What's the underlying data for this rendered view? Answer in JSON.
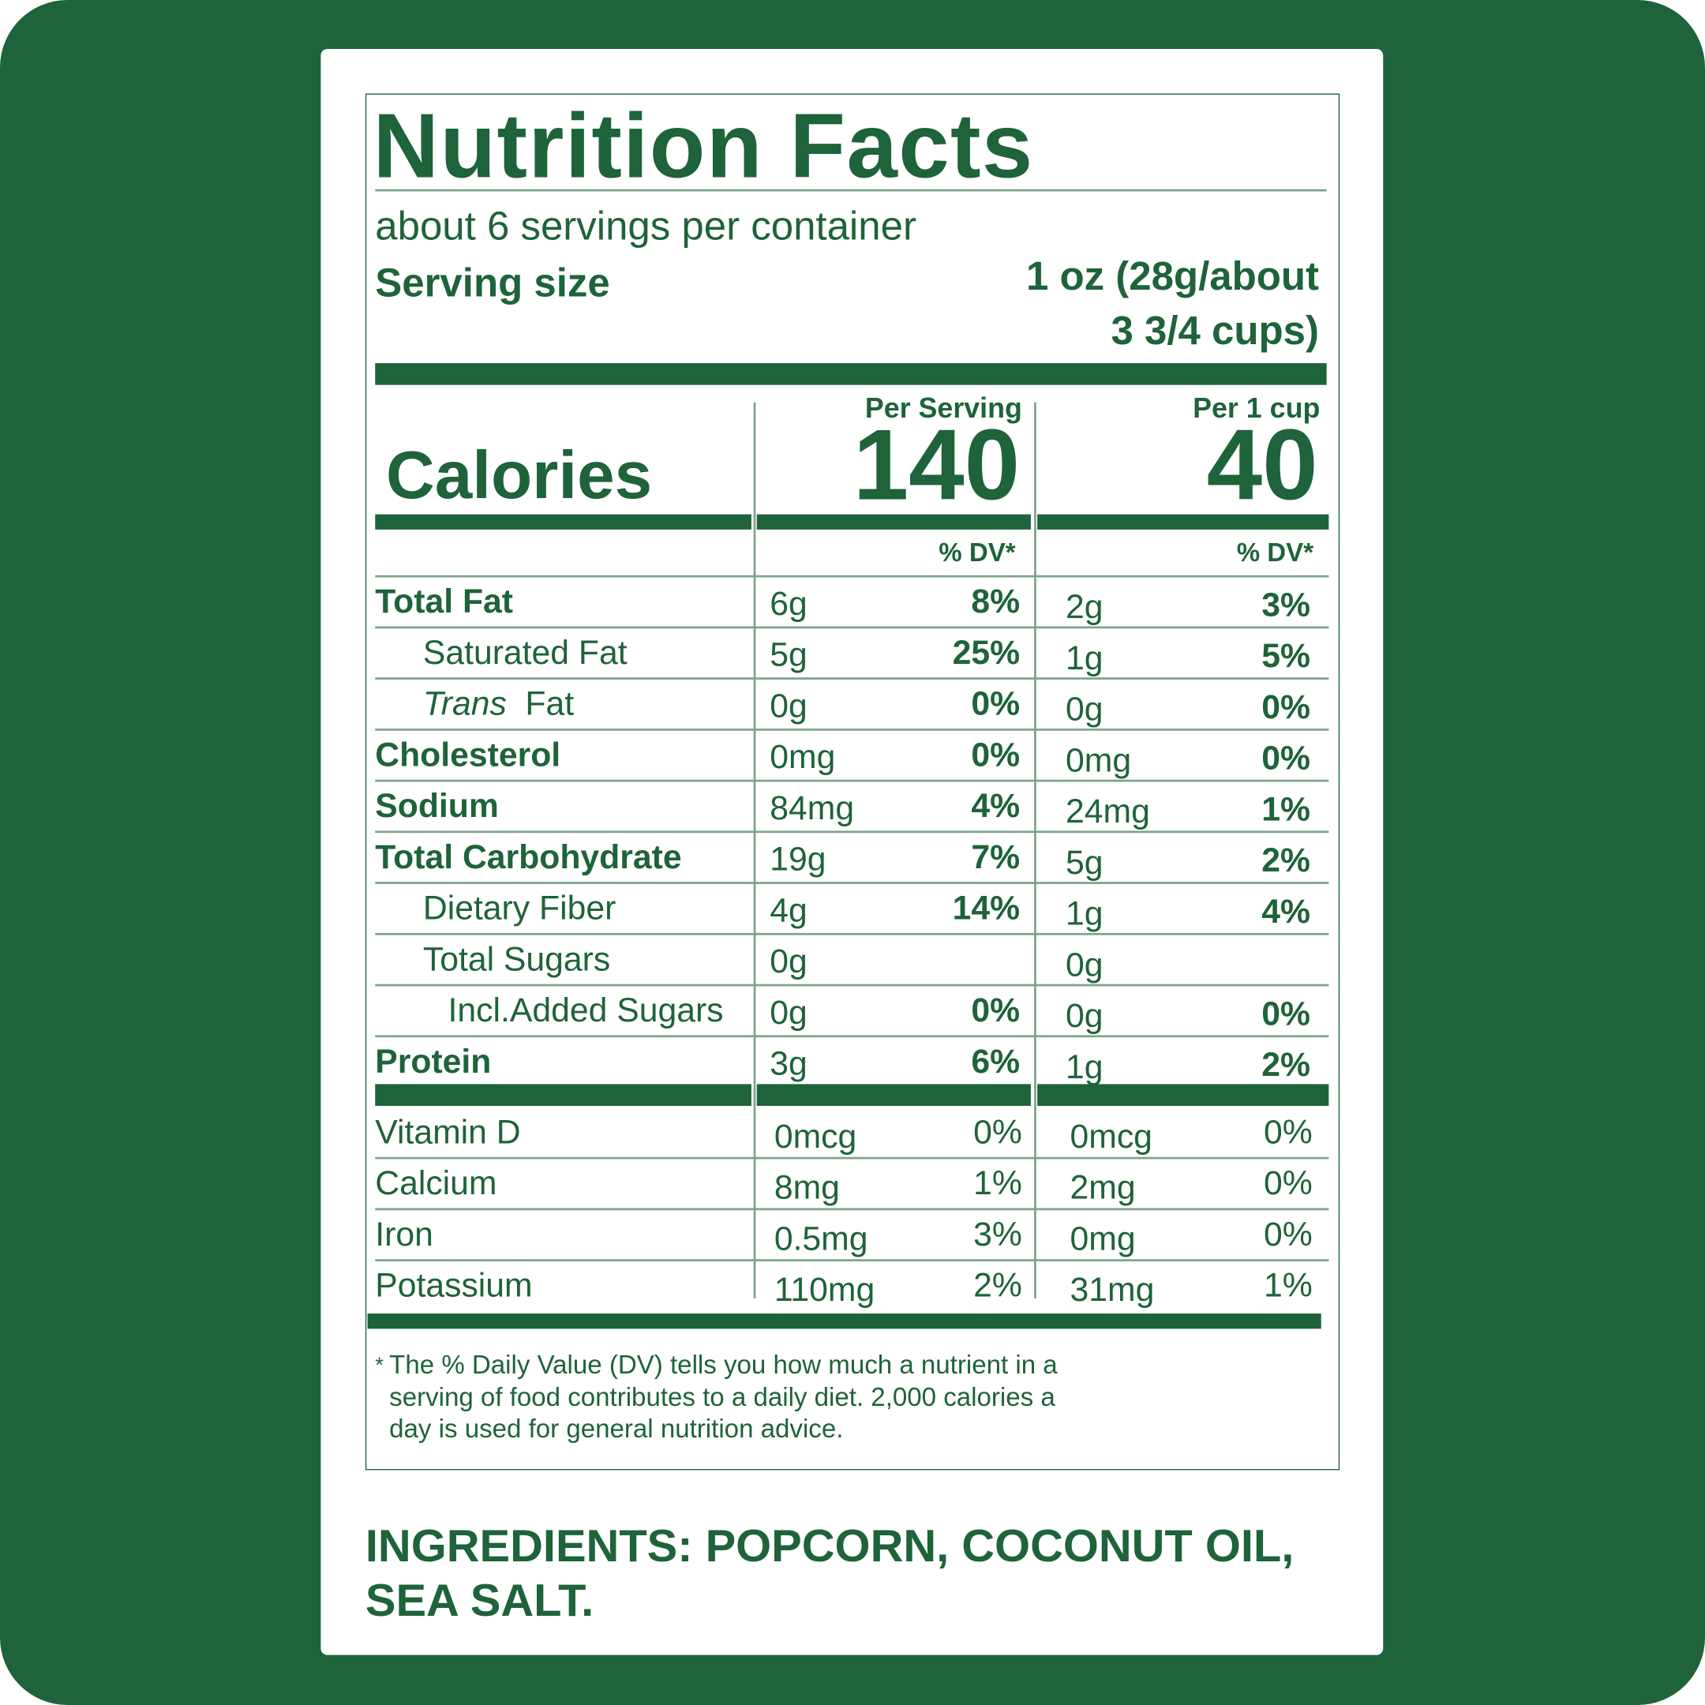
{
  "header": {
    "title": "Nutrition Facts",
    "servings": "about 6 servings per container",
    "serving_size_label": "Serving size",
    "serving_size_value": [
      "1 oz (28g/about",
      "3 3/4 cups)"
    ]
  },
  "columns": [
    {
      "heading": "Per Serving",
      "calories": "140",
      "dv_heading": "% DV*"
    },
    {
      "heading": "Per 1 cup",
      "calories": "40",
      "dv_heading": "% DV*"
    }
  ],
  "calories_label": "Calories",
  "nutrients": [
    {
      "name": "Total Fat",
      "values": [
        {
          "amount": "6g",
          "dv": "8%"
        },
        {
          "amount": "2g",
          "dv": "3%"
        }
      ]
    },
    {
      "name": "Saturated Fat",
      "values": [
        {
          "amount": "5g",
          "dv": "25%"
        },
        {
          "amount": "1g",
          "dv": "5%"
        }
      ]
    },
    {
      "name_italic": "Trans",
      "name": "Fat",
      "values": [
        {
          "amount": "0g",
          "dv": "0%"
        },
        {
          "amount": "0g",
          "dv": "0%"
        }
      ]
    },
    {
      "name": "Cholesterol",
      "values": [
        {
          "amount": "0mg",
          "dv": "0%"
        },
        {
          "amount": "0mg",
          "dv": "0%"
        }
      ]
    },
    {
      "name": "Sodium",
      "values": [
        {
          "amount": "84mg",
          "dv": "4%"
        },
        {
          "amount": "24mg",
          "dv": "1%"
        }
      ]
    },
    {
      "name": "Total Carbohydrate",
      "values": [
        {
          "amount": "19g",
          "dv": "7%"
        },
        {
          "amount": "5g",
          "dv": "2%"
        }
      ]
    },
    {
      "name": "Dietary Fiber",
      "values": [
        {
          "amount": "4g",
          "dv": "14%"
        },
        {
          "amount": "1g",
          "dv": "4%"
        }
      ]
    },
    {
      "name": "Total Sugars",
      "values": [
        {
          "amount": "0g"
        },
        {
          "amount": "0g"
        }
      ]
    },
    {
      "name": "Incl.Added Sugars",
      "values": [
        {
          "amount": "0g",
          "dv": "0%"
        },
        {
          "amount": "0g",
          "dv": "0%"
        }
      ]
    },
    {
      "name": "Protein",
      "values": [
        {
          "amount": "3g",
          "dv": "6%"
        },
        {
          "amount": "1g",
          "dv": "2%"
        }
      ]
    }
  ],
  "vitamins": [
    {
      "name": "Vitamin D",
      "values": [
        {
          "amount": "0mcg",
          "dv": "0%"
        },
        {
          "amount": "0mcg",
          "dv": "0%"
        }
      ]
    },
    {
      "name": "Calcium",
      "values": [
        {
          "amount": "8mg",
          "dv": "1%"
        },
        {
          "amount": "2mg",
          "dv": "0%"
        }
      ]
    },
    {
      "name": "Iron",
      "values": [
        {
          "amount": "0.5mg",
          "dv": "3%"
        },
        {
          "amount": "0mg",
          "dv": "0%"
        }
      ]
    },
    {
      "name": "Potassium",
      "values": [
        {
          "amount": "110mg",
          "dv": "2%"
        },
        {
          "amount": "31mg",
          "dv": "1%"
        }
      ]
    }
  ],
  "footnote": {
    "marker": "*",
    "lines": [
      "The % Daily Value (DV) tells you how much a nutrient in a",
      "serving of food contributes to a daily diet. 2,000 calories a",
      "day is used for general nutrition advice."
    ]
  },
  "ingredients": [
    "INGREDIENTS: POPCORN, COCONUT OIL,",
    "SEA SALT."
  ]
}
